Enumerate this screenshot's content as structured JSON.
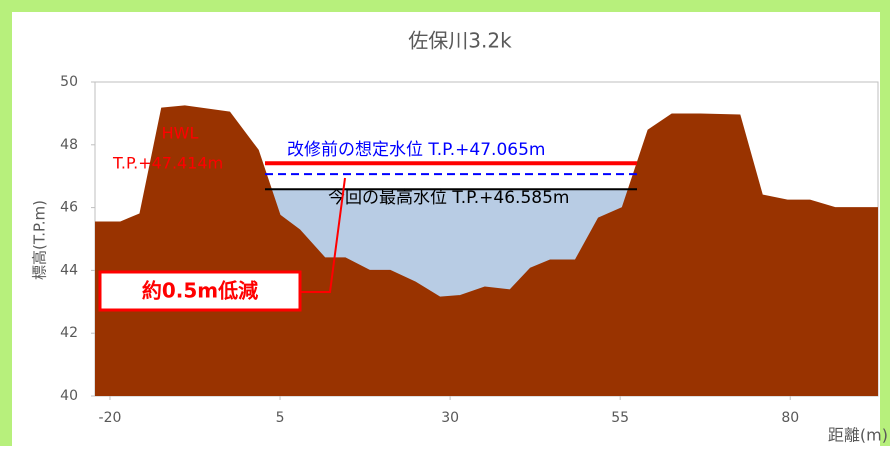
{
  "chart_data": {
    "type": "area",
    "title": "佐保川3.2k",
    "y_label": "標高(T.P.m)",
    "x_label": "距離(m)",
    "x": [
      -22.2,
      -18.5,
      -15.6,
      -12.4,
      -9.0,
      -2.4,
      1.8,
      5.0,
      7.9,
      11.6,
      14.6,
      18.2,
      21.2,
      24.9,
      28.5,
      31.5,
      35.1,
      38.8,
      41.8,
      44.7,
      48.4,
      51.8,
      55.3,
      59.1,
      62.6,
      66.8,
      72.6,
      75.9,
      79.6,
      82.9,
      86.6,
      92.9
    ],
    "values": [
      45.54,
      45.54,
      45.8,
      49.17,
      49.24,
      49.04,
      47.83,
      45.76,
      45.29,
      44.4,
      44.4,
      44.0,
      44.0,
      43.63,
      43.15,
      43.2,
      43.47,
      43.38,
      44.07,
      44.33,
      44.33,
      45.67,
      46.0,
      48.47,
      48.98,
      48.98,
      48.95,
      46.4,
      46.24,
      46.24,
      46.0,
      46.0
    ],
    "color": "#993300",
    "water_color": "#b8cce4",
    "xlim": [
      -22.2,
      92.9
    ],
    "ylim": [
      40,
      50
    ],
    "xticks": [
      -20,
      5,
      30,
      55,
      80
    ],
    "yticks": [
      40,
      42,
      44,
      46,
      48,
      50
    ],
    "hwl": {
      "name": "HWL",
      "label": "T.P.+47.414m",
      "value": 47.414,
      "color": "#ff0000"
    },
    "levels": [
      {
        "label": "改修前の想定水位 T.P.+47.065m",
        "value": 47.065,
        "color": "#0000ff",
        "dashed": true
      },
      {
        "label": "今回の最高水位 T.P.+46.585m",
        "value": 46.585,
        "color": "#000000",
        "dashed": false
      }
    ],
    "annotation": "約0.5m低減"
  }
}
